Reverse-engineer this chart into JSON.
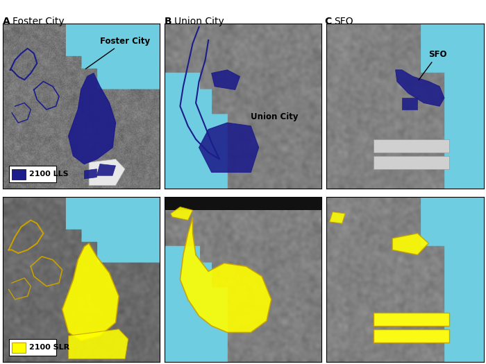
{
  "col_letters": [
    "A",
    "B",
    "C"
  ],
  "col_names": [
    "Foster City",
    "Union City",
    "SFO"
  ],
  "legend_top_label": "2100 LLS",
  "legend_bot_label": "2100 SLR",
  "blue_fill": "#1c1c8a",
  "blue_edge": "#1c1c8a",
  "yellow_fill": "#ffff00",
  "yellow_edge": "#c8a000",
  "water_color": "#6ecde0",
  "white_area": "#f0f0f0",
  "dark_gray": "#2a2a2a",
  "mid_gray": "#787878",
  "light_gray": "#c8c8c8",
  "label_fontsize": 10,
  "annot_fontsize": 8.5,
  "legend_fontsize": 8,
  "figsize": [
    7.0,
    5.25
  ],
  "dpi": 100
}
